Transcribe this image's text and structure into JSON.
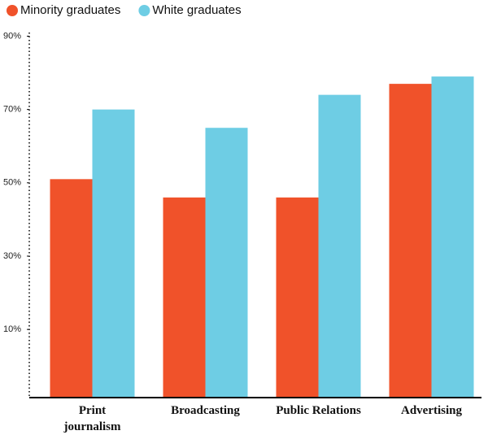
{
  "chart_data": {
    "type": "bar",
    "categories": [
      "Print journalism",
      "Broadcasting",
      "Public Relations",
      "Advertising"
    ],
    "series": [
      {
        "name": "Minority graduates",
        "color": "#f0522a",
        "values": [
          51,
          46,
          46,
          77
        ]
      },
      {
        "name": "White graduates",
        "color": "#6ecde4",
        "values": [
          70,
          65,
          74,
          79
        ]
      }
    ],
    "ylim": [
      -8.6,
      91
    ],
    "yticks": [
      {
        "value": 10,
        "label": "10%"
      },
      {
        "value": 30,
        "label": "30%"
      },
      {
        "value": 50,
        "label": "50%"
      },
      {
        "value": 70,
        "label": "70%"
      },
      {
        "value": 90,
        "label": "90%"
      }
    ],
    "legend": "top-left"
  }
}
